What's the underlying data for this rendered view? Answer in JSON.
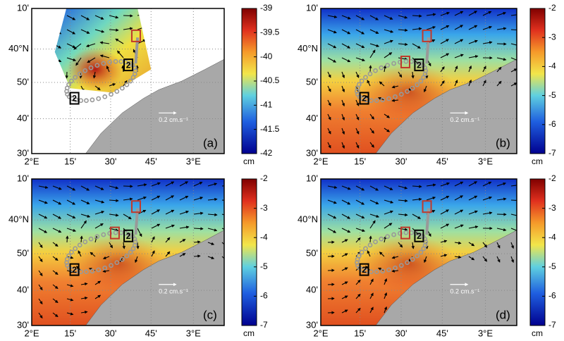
{
  "axes": {
    "x_labels": [
      "2°E",
      "15'",
      "30'",
      "45'",
      "3°E"
    ],
    "y_labels": [
      "10'",
      "40°N",
      "50'",
      "40'",
      "30'"
    ]
  },
  "vector_scale": "0.2 cm.s⁻¹",
  "colorbar_unit": "cm",
  "box_label": "2",
  "panels": [
    {
      "label": "(a)",
      "colorbar_ticks": [
        -39,
        -39.5,
        -40,
        -40.5,
        -41,
        -41.5,
        -42
      ]
    },
    {
      "label": "(b)",
      "colorbar_ticks": [
        -2,
        -3,
        -4,
        -5,
        -6,
        -7
      ]
    },
    {
      "label": "(c)",
      "colorbar_ticks": [
        -2,
        -3,
        -4,
        -5,
        -6,
        -7
      ]
    },
    {
      "label": "(d)",
      "colorbar_ticks": [
        -2,
        -3,
        -4,
        -5,
        -6,
        -7
      ]
    }
  ]
}
